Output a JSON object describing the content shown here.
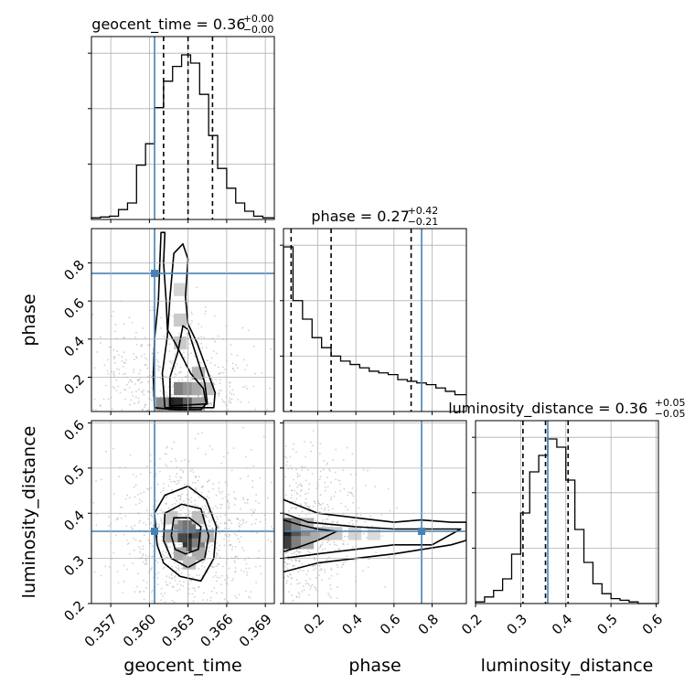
{
  "chart_data": {
    "type": "corner",
    "parameters": [
      "geocent_time",
      "phase",
      "luminosity_distance"
    ],
    "truths": {
      "geocent_time": 0.3604,
      "phase": 0.745,
      "luminosity_distance": 0.36
    },
    "truth_color": "#4682b4",
    "titles": [
      {
        "param": "geocent_time",
        "text": "geocent_time = 0.36",
        "sup": "+0.00",
        "sub": "−0.00"
      },
      {
        "param": "phase",
        "text": "phase = 0.27",
        "sup": "+0.42",
        "sub": "−0.21"
      },
      {
        "param": "luminosity_distance",
        "text": "luminosity_distance = 0.36",
        "sup": "+0.05",
        "sub": "−0.05"
      }
    ],
    "axes": {
      "geocent_time": {
        "range": [
          0.3555,
          0.3697
        ],
        "ticks": [
          "0.357",
          "0.360",
          "0.363",
          "0.366",
          "0.369"
        ],
        "tick_values": [
          0.357,
          0.36,
          0.363,
          0.366,
          0.369
        ]
      },
      "phase": {
        "range": [
          0.02,
          0.98
        ],
        "ticks": [
          "0.2",
          "0.4",
          "0.6",
          "0.8"
        ],
        "tick_values": [
          0.2,
          0.4,
          0.6,
          0.8
        ]
      },
      "luminosity_distance": {
        "range": [
          0.2,
          0.605
        ],
        "ticks": [
          "0.2",
          "0.3",
          "0.4",
          "0.5",
          "0.6"
        ],
        "tick_values": [
          0.2,
          0.3,
          0.4,
          0.5,
          0.6
        ]
      }
    },
    "hist_geocent_time": {
      "bin_edges": [
        0.3555,
        0.3562,
        0.3569,
        0.3576,
        0.3583,
        0.359,
        0.3597,
        0.3604,
        0.3611,
        0.3618,
        0.3625,
        0.3632,
        0.3639,
        0.3646,
        0.3653,
        0.366,
        0.3667,
        0.3674,
        0.3681,
        0.3688,
        0.3697
      ],
      "counts": [
        0.01,
        0.015,
        0.02,
        0.06,
        0.1,
        0.33,
        0.46,
        0.68,
        0.84,
        0.93,
        1.0,
        0.95,
        0.76,
        0.51,
        0.31,
        0.19,
        0.1,
        0.05,
        0.02,
        0.01
      ],
      "quantiles": [
        0.3611,
        0.363,
        0.3649
      ]
    },
    "hist_phase": {
      "bin_edges": [
        0.02,
        0.07,
        0.12,
        0.17,
        0.22,
        0.27,
        0.32,
        0.37,
        0.42,
        0.47,
        0.52,
        0.57,
        0.62,
        0.67,
        0.72,
        0.77,
        0.82,
        0.87,
        0.92,
        0.98
      ],
      "counts": [
        0.98,
        0.66,
        0.55,
        0.44,
        0.38,
        0.33,
        0.3,
        0.28,
        0.26,
        0.24,
        0.23,
        0.22,
        0.19,
        0.18,
        0.17,
        0.16,
        0.14,
        0.12,
        0.1
      ],
      "quantiles": [
        0.06,
        0.27,
        0.69
      ]
    },
    "hist_luminosity_distance": {
      "bin_edges": [
        0.2,
        0.22,
        0.24,
        0.26,
        0.28,
        0.3,
        0.32,
        0.34,
        0.36,
        0.38,
        0.4,
        0.42,
        0.44,
        0.46,
        0.48,
        0.5,
        0.52,
        0.54,
        0.56,
        0.58,
        0.605
      ],
      "counts": [
        0.01,
        0.04,
        0.08,
        0.15,
        0.3,
        0.55,
        0.8,
        0.9,
        1.0,
        0.95,
        0.75,
        0.45,
        0.25,
        0.12,
        0.06,
        0.03,
        0.02,
        0.01,
        0.0,
        0.0
      ],
      "quantiles": [
        0.305,
        0.355,
        0.405
      ]
    },
    "density_phase_vs_geocent_time": {
      "contours": [
        [
          [
            0.3604,
            0.04
          ],
          [
            0.3603,
            0.2
          ],
          [
            0.3604,
            0.4
          ],
          [
            0.3607,
            0.6
          ],
          [
            0.3608,
            0.78
          ],
          [
            0.3609,
            0.96
          ],
          [
            0.3612,
            0.96
          ],
          [
            0.3611,
            0.8
          ],
          [
            0.3613,
            0.6
          ],
          [
            0.3614,
            0.45
          ],
          [
            0.362,
            0.38
          ],
          [
            0.3626,
            0.3
          ],
          [
            0.3632,
            0.22
          ],
          [
            0.3642,
            0.14
          ],
          [
            0.3644,
            0.06
          ],
          [
            0.364,
            0.03
          ],
          [
            0.362,
            0.03
          ],
          [
            0.3604,
            0.04
          ]
        ],
        [
          [
            0.3612,
            0.04
          ],
          [
            0.361,
            0.22
          ],
          [
            0.3614,
            0.42
          ],
          [
            0.3616,
            0.62
          ],
          [
            0.3619,
            0.85
          ],
          [
            0.3626,
            0.9
          ],
          [
            0.363,
            0.82
          ],
          [
            0.3628,
            0.62
          ],
          [
            0.363,
            0.48
          ],
          [
            0.3637,
            0.38
          ],
          [
            0.3644,
            0.25
          ],
          [
            0.3651,
            0.12
          ],
          [
            0.365,
            0.04
          ],
          [
            0.3612,
            0.04
          ]
        ],
        [
          [
            0.3616,
            0.05
          ],
          [
            0.3616,
            0.2
          ],
          [
            0.3622,
            0.33
          ],
          [
            0.3626,
            0.47
          ],
          [
            0.363,
            0.45
          ],
          [
            0.3637,
            0.3
          ],
          [
            0.3643,
            0.17
          ],
          [
            0.3645,
            0.06
          ],
          [
            0.3616,
            0.05
          ]
        ]
      ],
      "shaded_cells": [
        {
          "x": 0.3617,
          "y": 0.06,
          "d": 1.0
        },
        {
          "x": 0.3624,
          "y": 0.06,
          "d": 0.95
        },
        {
          "x": 0.3631,
          "y": 0.06,
          "d": 0.7
        },
        {
          "x": 0.361,
          "y": 0.06,
          "d": 0.5
        },
        {
          "x": 0.3638,
          "y": 0.06,
          "d": 0.4
        },
        {
          "x": 0.3624,
          "y": 0.14,
          "d": 0.55
        },
        {
          "x": 0.3631,
          "y": 0.14,
          "d": 0.45
        },
        {
          "x": 0.3638,
          "y": 0.14,
          "d": 0.35
        },
        {
          "x": 0.3638,
          "y": 0.22,
          "d": 0.3
        },
        {
          "x": 0.3645,
          "y": 0.14,
          "d": 0.25
        },
        {
          "x": 0.3624,
          "y": 0.38,
          "d": 0.2
        },
        {
          "x": 0.3624,
          "y": 0.5,
          "d": 0.2
        },
        {
          "x": 0.3624,
          "y": 0.66,
          "d": 0.15
        }
      ]
    },
    "density_luminosity_distance_vs_geocent_time": {
      "contours": [
        [
          [
            0.3606,
            0.33
          ],
          [
            0.3604,
            0.4
          ],
          [
            0.3612,
            0.44
          ],
          [
            0.363,
            0.46
          ],
          [
            0.3644,
            0.43
          ],
          [
            0.3652,
            0.37
          ],
          [
            0.365,
            0.3
          ],
          [
            0.364,
            0.25
          ],
          [
            0.3624,
            0.26
          ],
          [
            0.3611,
            0.29
          ],
          [
            0.3606,
            0.33
          ]
        ],
        [
          [
            0.3611,
            0.34
          ],
          [
            0.3612,
            0.4
          ],
          [
            0.3625,
            0.42
          ],
          [
            0.364,
            0.41
          ],
          [
            0.3646,
            0.35
          ],
          [
            0.3643,
            0.3
          ],
          [
            0.363,
            0.28
          ],
          [
            0.3617,
            0.3
          ],
          [
            0.3611,
            0.34
          ]
        ],
        [
          [
            0.3617,
            0.35
          ],
          [
            0.3619,
            0.39
          ],
          [
            0.3631,
            0.39
          ],
          [
            0.364,
            0.37
          ],
          [
            0.3638,
            0.32
          ],
          [
            0.3628,
            0.31
          ],
          [
            0.362,
            0.32
          ],
          [
            0.3617,
            0.35
          ]
        ]
      ],
      "shaded_cells": [
        {
          "x": 0.3631,
          "y": 0.35,
          "d": 1.0
        },
        {
          "x": 0.3631,
          "y": 0.33,
          "d": 0.9
        },
        {
          "x": 0.3624,
          "y": 0.35,
          "d": 0.8
        },
        {
          "x": 0.3638,
          "y": 0.35,
          "d": 0.75
        },
        {
          "x": 0.3624,
          "y": 0.37,
          "d": 0.5
        },
        {
          "x": 0.3631,
          "y": 0.37,
          "d": 0.6
        },
        {
          "x": 0.3638,
          "y": 0.33,
          "d": 0.55
        },
        {
          "x": 0.3617,
          "y": 0.35,
          "d": 0.35
        },
        {
          "x": 0.3624,
          "y": 0.31,
          "d": 0.35
        },
        {
          "x": 0.3638,
          "y": 0.31,
          "d": 0.35
        },
        {
          "x": 0.3645,
          "y": 0.35,
          "d": 0.3
        },
        {
          "x": 0.3617,
          "y": 0.39,
          "d": 0.2
        },
        {
          "x": 0.3631,
          "y": 0.29,
          "d": 0.25
        },
        {
          "x": 0.3638,
          "y": 0.39,
          "d": 0.25
        }
      ]
    },
    "density_luminosity_distance_vs_phase": {
      "contours": [
        [
          [
            0.02,
            0.43
          ],
          [
            0.2,
            0.4
          ],
          [
            0.4,
            0.39
          ],
          [
            0.6,
            0.38
          ],
          [
            0.74,
            0.385
          ],
          [
            0.9,
            0.38
          ],
          [
            0.98,
            0.38
          ],
          [
            0.98,
            0.34
          ],
          [
            0.9,
            0.33
          ],
          [
            0.6,
            0.31
          ],
          [
            0.4,
            0.3
          ],
          [
            0.2,
            0.29
          ],
          [
            0.02,
            0.27
          ]
        ],
        [
          [
            0.02,
            0.4
          ],
          [
            0.15,
            0.38
          ],
          [
            0.4,
            0.37
          ],
          [
            0.6,
            0.365
          ],
          [
            0.8,
            0.365
          ],
          [
            0.95,
            0.365
          ],
          [
            0.8,
            0.33
          ],
          [
            0.6,
            0.33
          ],
          [
            0.4,
            0.32
          ],
          [
            0.2,
            0.31
          ],
          [
            0.02,
            0.3
          ]
        ],
        [
          [
            0.02,
            0.385
          ],
          [
            0.1,
            0.375
          ],
          [
            0.2,
            0.365
          ],
          [
            0.3,
            0.36
          ],
          [
            0.2,
            0.34
          ],
          [
            0.1,
            0.325
          ],
          [
            0.02,
            0.315
          ]
        ]
      ],
      "shaded_cells": [
        {
          "x": 0.045,
          "y": 0.355,
          "d": 1.0
        },
        {
          "x": 0.045,
          "y": 0.335,
          "d": 0.85
        },
        {
          "x": 0.045,
          "y": 0.375,
          "d": 0.7
        },
        {
          "x": 0.095,
          "y": 0.355,
          "d": 0.75
        },
        {
          "x": 0.095,
          "y": 0.335,
          "d": 0.55
        },
        {
          "x": 0.095,
          "y": 0.375,
          "d": 0.5
        },
        {
          "x": 0.145,
          "y": 0.355,
          "d": 0.5
        },
        {
          "x": 0.195,
          "y": 0.355,
          "d": 0.35
        },
        {
          "x": 0.245,
          "y": 0.355,
          "d": 0.25
        },
        {
          "x": 0.295,
          "y": 0.355,
          "d": 0.2
        },
        {
          "x": 0.395,
          "y": 0.355,
          "d": 0.15
        },
        {
          "x": 0.495,
          "y": 0.355,
          "d": 0.12
        },
        {
          "x": 0.145,
          "y": 0.335,
          "d": 0.35
        },
        {
          "x": 0.145,
          "y": 0.375,
          "d": 0.3
        }
      ]
    }
  }
}
